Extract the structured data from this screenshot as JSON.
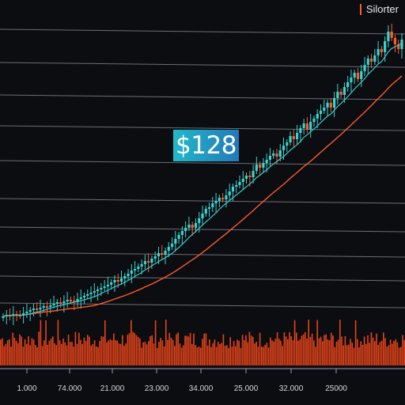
{
  "legend": {
    "label": "Silorter",
    "color": "#ff5a2a"
  },
  "price_badge": {
    "text": "$128"
  },
  "colors": {
    "background": "#0b0d11",
    "grid": "#8a8f96",
    "up": "#39d4d0",
    "down": "#ff5a2a",
    "ma_fast": "#3fc9cc",
    "ma_slow": "#ff5a2a",
    "volume": "#ff4a1c"
  },
  "chart_data": {
    "type": "candlestick",
    "title": "",
    "xlabel": "",
    "ylabel": "",
    "grid": true,
    "legend_position": "top-right",
    "x_tick_labels": [
      "1.000",
      "74.000",
      "21.000",
      "23.000",
      "34.000",
      "25.000",
      "32.000",
      "25000"
    ],
    "annotations": [
      "$128"
    ],
    "series": [
      {
        "name": "Silorter",
        "kind": "candles"
      }
    ],
    "close_values": [
      12,
      14,
      13,
      15,
      14,
      13,
      16,
      18,
      20,
      22,
      21,
      23,
      25,
      24,
      26,
      28,
      30,
      29,
      31,
      33,
      32,
      30,
      34,
      36,
      38,
      40,
      42,
      44,
      46,
      48,
      50,
      52,
      55,
      58,
      56,
      60,
      63,
      66,
      70,
      72,
      75,
      78,
      82,
      80,
      85,
      88,
      92,
      90,
      95,
      100,
      104,
      110,
      115,
      120,
      124,
      128,
      124,
      130,
      136,
      142,
      148,
      150,
      155,
      158,
      162,
      160,
      165,
      170,
      176,
      178,
      182,
      186,
      190,
      188,
      196,
      204,
      200,
      206,
      210,
      215,
      218,
      214,
      222,
      228,
      232,
      240,
      236,
      244,
      250,
      256,
      248,
      258,
      262,
      268,
      272,
      276,
      282,
      276,
      288,
      296,
      292,
      302,
      308,
      314,
      320,
      312,
      322,
      330,
      338,
      334,
      342,
      350,
      346,
      360,
      372,
      364,
      356,
      350,
      362
    ],
    "ma_fast_period": 8,
    "ma_slow_period": 28
  }
}
